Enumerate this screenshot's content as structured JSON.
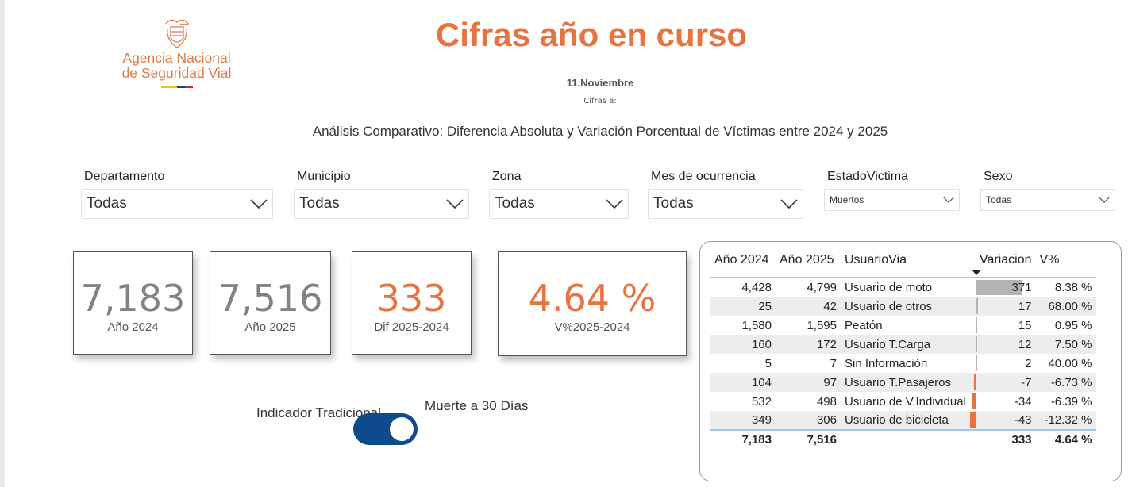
{
  "logo": {
    "line1": "Agencia Nacional",
    "line2": "de Seguridad Vial"
  },
  "header": {
    "title": "Cifras año en curso",
    "date": "11.Noviembre",
    "cifras_label": "Cifras a:",
    "subtitle": "Análisis Comparativo: Diferencia Absoluta y Variación Porcentual de Víctimas entre 2024 y 2025"
  },
  "filters": [
    {
      "label": "Departamento",
      "value": "Todas"
    },
    {
      "label": "Municipio",
      "value": "Todas"
    },
    {
      "label": "Zona",
      "value": "Todas"
    },
    {
      "label": "Mes de ocurrencia",
      "value": "Todas"
    },
    {
      "label": "EstadoVictima",
      "value": "Muertos"
    },
    {
      "label": "Sexo",
      "value": "Todas"
    }
  ],
  "cards": [
    {
      "value": "7,183",
      "label": "Año 2024"
    },
    {
      "value": "7,516",
      "label": "Año 2025"
    },
    {
      "value": "333",
      "label": "Dif 2025-2024"
    },
    {
      "value": "4.64 %",
      "label": "V%2025-2024"
    }
  ],
  "toggle": {
    "left_label": "Indicador Tradicional",
    "right_label": "Muerte a 30 Días",
    "state": "on"
  },
  "table": {
    "headers": [
      "Año 2024",
      "Año 2025",
      "UsuarioVia",
      "Variacion",
      "V%"
    ],
    "rows": [
      {
        "y2024": "4,428",
        "y2025": "4,799",
        "usuario": "Usuario de moto",
        "variacion": 371,
        "vp": "8.38 %"
      },
      {
        "y2024": "25",
        "y2025": "42",
        "usuario": "Usuario de otros",
        "variacion": 17,
        "vp": "68.00 %"
      },
      {
        "y2024": "1,580",
        "y2025": "1,595",
        "usuario": "Peatón",
        "variacion": 15,
        "vp": "0.95 %"
      },
      {
        "y2024": "160",
        "y2025": "172",
        "usuario": "Usuario T.Carga",
        "variacion": 12,
        "vp": "7.50 %"
      },
      {
        "y2024": "5",
        "y2025": "7",
        "usuario": "Sin Información",
        "variacion": 2,
        "vp": "40.00 %"
      },
      {
        "y2024": "104",
        "y2025": "97",
        "usuario": "Usuario T.Pasajeros",
        "variacion": -7,
        "vp": "-6.73 %"
      },
      {
        "y2024": "532",
        "y2025": "498",
        "usuario": "Usuario de V.Individual",
        "variacion": -34,
        "vp": "-6.39 %"
      },
      {
        "y2024": "349",
        "y2025": "306",
        "usuario": "Usuario de bicicleta",
        "variacion": -43,
        "vp": "-12.32 %"
      }
    ],
    "total": {
      "y2024": "7,183",
      "y2025": "7,516",
      "variacion": "333",
      "vp": "4.64 %"
    }
  },
  "colors": {
    "accent": "#e8733f",
    "toggle": "#0d4b8a",
    "pos_bar": "#b3b3b3",
    "neg_bar": "#e8733f"
  }
}
